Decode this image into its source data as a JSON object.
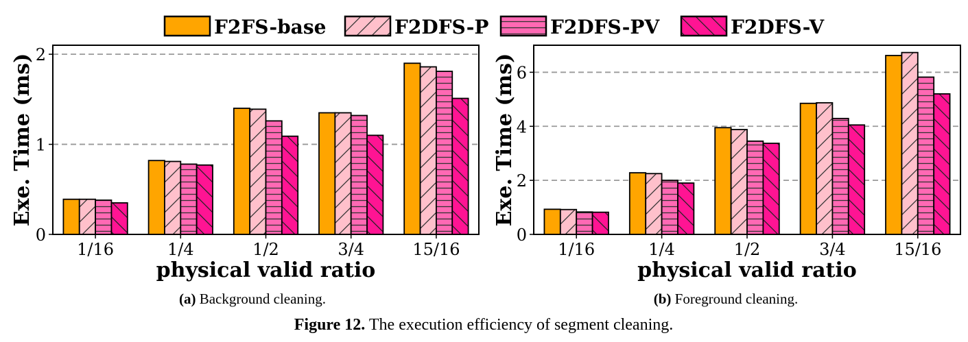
{
  "legend": [
    {
      "name": "F2FS-base",
      "color": "#ffa500",
      "pattern": "solid"
    },
    {
      "name": "F2DFS-P",
      "color": "#ffc0cb",
      "pattern": "diag-fwd"
    },
    {
      "name": "F2DFS-PV",
      "color": "#ff69b4",
      "pattern": "horizontal"
    },
    {
      "name": "F2DFS-V",
      "color": "#ff1493",
      "pattern": "diag-back"
    }
  ],
  "chart_data": [
    {
      "type": "bar",
      "categories": [
        "1/16",
        "1/4",
        "1/2",
        "3/4",
        "15/16"
      ],
      "series": [
        {
          "name": "F2FS-base",
          "values": [
            0.39,
            0.82,
            1.4,
            1.35,
            1.9
          ]
        },
        {
          "name": "F2DFS-P",
          "values": [
            0.39,
            0.81,
            1.39,
            1.35,
            1.86
          ]
        },
        {
          "name": "F2DFS-PV",
          "values": [
            0.38,
            0.78,
            1.26,
            1.32,
            1.81
          ]
        },
        {
          "name": "F2DFS-V",
          "values": [
            0.35,
            0.77,
            1.09,
            1.1,
            1.51
          ]
        }
      ],
      "xlabel": "physical valid ratio",
      "ylabel": "Exe. Time (ms)",
      "ylim": [
        0,
        2.1
      ],
      "yticks": [
        0,
        1,
        2
      ],
      "grid": "horizontal dashed",
      "caption_tag": "(a)",
      "caption_text": "Background cleaning."
    },
    {
      "type": "bar",
      "categories": [
        "1/16",
        "1/4",
        "1/2",
        "3/4",
        "15/16"
      ],
      "series": [
        {
          "name": "F2FS-base",
          "values": [
            0.93,
            2.28,
            3.95,
            4.85,
            6.62
          ]
        },
        {
          "name": "F2DFS-P",
          "values": [
            0.92,
            2.25,
            3.88,
            4.87,
            6.73
          ]
        },
        {
          "name": "F2DFS-PV",
          "values": [
            0.83,
            2.0,
            3.45,
            4.29,
            5.82
          ]
        },
        {
          "name": "F2DFS-V",
          "values": [
            0.82,
            1.9,
            3.37,
            4.05,
            5.2
          ]
        }
      ],
      "xlabel": "physical valid ratio",
      "ylabel": "Exe. Time (ms)",
      "ylim": [
        0,
        7
      ],
      "yticks": [
        0,
        2,
        4,
        6
      ],
      "grid": "horizontal dashed",
      "caption_tag": "(b)",
      "caption_text": "Foreground cleaning."
    }
  ],
  "figure_caption": {
    "label": "Figure 12.",
    "text": "The execution efficiency of segment cleaning."
  }
}
